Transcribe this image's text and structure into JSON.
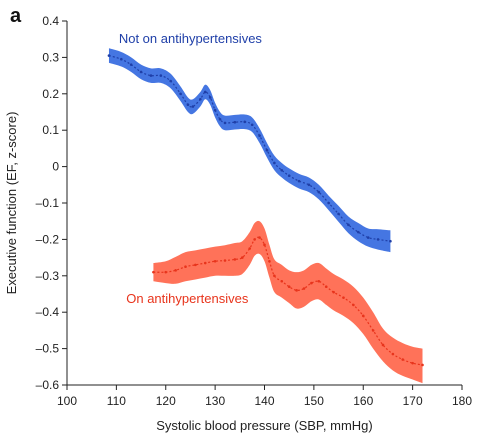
{
  "chart_data": {
    "type": "line",
    "panel_label": "a",
    "xlabel": "Systolic blood pressure (SBP, mmHg)",
    "ylabel": "Executive function (EF, z-score)",
    "xlim": [
      100,
      180
    ],
    "ylim": [
      -0.6,
      0.4
    ],
    "xticks": [
      100,
      110,
      120,
      130,
      140,
      150,
      160,
      170,
      180
    ],
    "yticks": [
      0.4,
      0.3,
      0.2,
      0.1,
      0,
      -0.1,
      -0.2,
      -0.3,
      -0.4,
      -0.5,
      -0.6
    ],
    "ytick_labels": [
      "0.4",
      "0.3",
      "0.2",
      "0.1",
      "0",
      "–0.1",
      "–0.2",
      "–0.3",
      "–0.4",
      "–0.5",
      "–0.6"
    ],
    "grid": false,
    "series": [
      {
        "name": "Not on antihypertensives",
        "line_color": "#1f3fa8",
        "band_color": "#3b6fe0",
        "x": [
          108.5,
          111,
          113,
          115,
          117,
          119,
          121,
          123,
          124.5,
          125.5,
          127,
          128,
          129,
          130,
          131,
          132,
          134,
          136,
          137.5,
          139,
          140.5,
          142,
          143.5,
          145,
          147,
          149,
          151,
          153,
          155,
          157,
          159,
          161,
          163,
          165.5
        ],
        "y": [
          0.305,
          0.295,
          0.28,
          0.26,
          0.25,
          0.25,
          0.235,
          0.2,
          0.17,
          0.165,
          0.185,
          0.205,
          0.19,
          0.155,
          0.13,
          0.12,
          0.122,
          0.123,
          0.115,
          0.085,
          0.045,
          0.01,
          -0.01,
          -0.025,
          -0.04,
          -0.05,
          -0.07,
          -0.1,
          -0.13,
          -0.16,
          -0.18,
          -0.195,
          -0.2,
          -0.205
        ],
        "lower": [
          0.285,
          0.275,
          0.26,
          0.24,
          0.23,
          0.23,
          0.215,
          0.18,
          0.15,
          0.145,
          0.165,
          0.185,
          0.17,
          0.135,
          0.11,
          0.1,
          0.102,
          0.103,
          0.095,
          0.065,
          0.025,
          -0.01,
          -0.03,
          -0.045,
          -0.06,
          -0.07,
          -0.09,
          -0.12,
          -0.152,
          -0.183,
          -0.205,
          -0.22,
          -0.228,
          -0.235
        ],
        "upper": [
          0.325,
          0.315,
          0.3,
          0.28,
          0.27,
          0.27,
          0.255,
          0.22,
          0.19,
          0.185,
          0.205,
          0.225,
          0.21,
          0.175,
          0.15,
          0.14,
          0.142,
          0.143,
          0.135,
          0.105,
          0.065,
          0.03,
          0.01,
          -0.005,
          -0.02,
          -0.03,
          -0.05,
          -0.08,
          -0.108,
          -0.137,
          -0.155,
          -0.17,
          -0.172,
          -0.175
        ]
      },
      {
        "name": "On antihypertensives",
        "line_color": "#e8341c",
        "band_color": "#ff6a50",
        "x": [
          117.5,
          120,
          122,
          124,
          126,
          128,
          130,
          132,
          134,
          135.5,
          137,
          138,
          139,
          140,
          141,
          142,
          143.5,
          145,
          146.5,
          148,
          149.5,
          151,
          152.5,
          154,
          156,
          158,
          160,
          162,
          164,
          166,
          168,
          170,
          172
        ],
        "y": [
          -0.29,
          -0.29,
          -0.285,
          -0.275,
          -0.27,
          -0.265,
          -0.26,
          -0.258,
          -0.255,
          -0.25,
          -0.225,
          -0.2,
          -0.195,
          -0.215,
          -0.26,
          -0.3,
          -0.315,
          -0.33,
          -0.34,
          -0.335,
          -0.32,
          -0.315,
          -0.33,
          -0.345,
          -0.36,
          -0.38,
          -0.41,
          -0.45,
          -0.49,
          -0.515,
          -0.53,
          -0.54,
          -0.545
        ],
        "lower": [
          -0.315,
          -0.32,
          -0.322,
          -0.315,
          -0.31,
          -0.305,
          -0.3,
          -0.3,
          -0.3,
          -0.295,
          -0.27,
          -0.245,
          -0.24,
          -0.26,
          -0.305,
          -0.345,
          -0.36,
          -0.375,
          -0.39,
          -0.385,
          -0.37,
          -0.365,
          -0.38,
          -0.395,
          -0.41,
          -0.43,
          -0.46,
          -0.5,
          -0.535,
          -0.56,
          -0.575,
          -0.585,
          -0.595
        ],
        "upper": [
          -0.265,
          -0.26,
          -0.248,
          -0.235,
          -0.23,
          -0.225,
          -0.22,
          -0.216,
          -0.21,
          -0.205,
          -0.18,
          -0.155,
          -0.15,
          -0.17,
          -0.215,
          -0.255,
          -0.27,
          -0.285,
          -0.29,
          -0.285,
          -0.27,
          -0.265,
          -0.28,
          -0.295,
          -0.31,
          -0.33,
          -0.36,
          -0.4,
          -0.445,
          -0.47,
          -0.485,
          -0.495,
          -0.5
        ]
      }
    ],
    "annotations": [
      {
        "text": "Not on antihypertensives",
        "x": 110.5,
        "y": 0.34,
        "series_index": 0
      },
      {
        "text": "On antihypertensives",
        "x": 112,
        "y": -0.375,
        "series_index": 1
      }
    ]
  }
}
